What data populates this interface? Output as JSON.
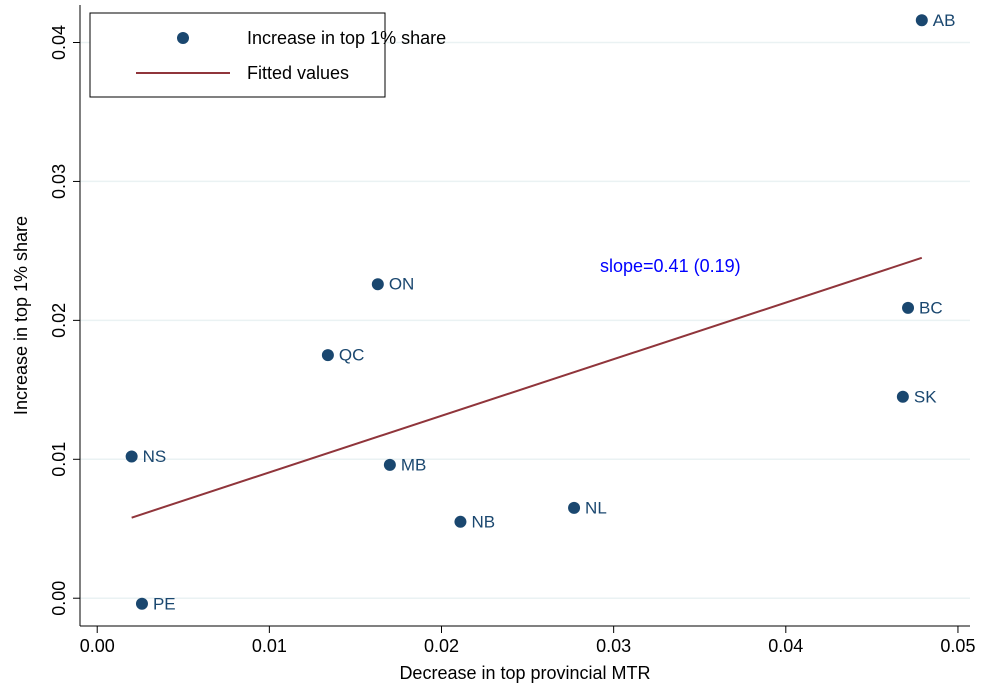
{
  "chart_data": {
    "type": "scatter",
    "x_label": "Decrease in top provincial MTR",
    "y_label": "Increase in top 1% share",
    "annotation": "slope=0.41 (0.19)",
    "xlim": [
      -0.001,
      0.0507
    ],
    "ylim": [
      -0.002,
      0.0427
    ],
    "xticks": [
      {
        "value": 0,
        "label": "0.00"
      },
      {
        "value": 0.01,
        "label": "0.01"
      },
      {
        "value": 0.02,
        "label": "0.02"
      },
      {
        "value": 0.03,
        "label": "0.03"
      },
      {
        "value": 0.04,
        "label": "0.04"
      },
      {
        "value": 0.05,
        "label": "0.05"
      }
    ],
    "yticks": [
      {
        "value": 0,
        "label": "0.00"
      },
      {
        "value": 0.01,
        "label": "0.01"
      },
      {
        "value": 0.02,
        "label": "0.02"
      },
      {
        "value": 0.03,
        "label": "0.03"
      },
      {
        "value": 0.04,
        "label": "0.04"
      }
    ],
    "grid": true,
    "legend": "top-left",
    "series": [
      {
        "name": "Increase in top 1% share",
        "type": "scatter",
        "color": "#1a476f",
        "point_labels": [
          "AB",
          "BC",
          "SK",
          "ON",
          "QC",
          "NS",
          "MB",
          "NB",
          "NL",
          "PE"
        ],
        "x": [
          0.0479,
          0.0471,
          0.0468,
          0.0163,
          0.0134,
          0.002,
          0.017,
          0.0211,
          0.0277,
          0.0026
        ],
        "values": [
          0.0416,
          0.0209,
          0.0145,
          0.0226,
          0.0175,
          0.0102,
          0.0096,
          0.0055,
          0.0065,
          -0.0004
        ]
      },
      {
        "name": "Fitted values",
        "type": "line",
        "color": "#90353b",
        "x": [
          0.002,
          0.0479
        ],
        "values": [
          0.0058,
          0.0245
        ]
      }
    ]
  }
}
